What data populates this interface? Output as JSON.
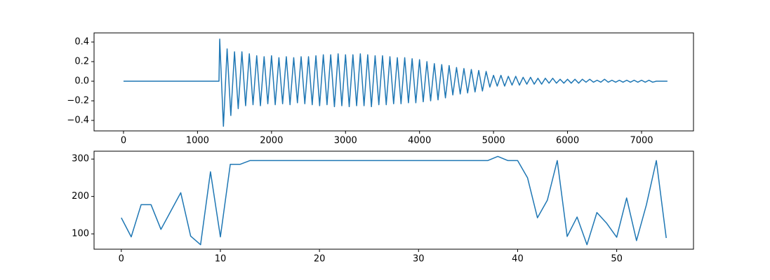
{
  "chart_data": [
    {
      "type": "line",
      "x": [
        0,
        600,
        1200,
        1290,
        1300,
        1350,
        1400,
        1450,
        1500,
        1550,
        1600,
        1650,
        1700,
        1750,
        1800,
        1850,
        1900,
        1950,
        2000,
        2050,
        2100,
        2150,
        2200,
        2250,
        2300,
        2350,
        2400,
        2450,
        2500,
        2550,
        2600,
        2650,
        2700,
        2750,
        2800,
        2850,
        2900,
        2950,
        3000,
        3050,
        3100,
        3150,
        3200,
        3250,
        3300,
        3350,
        3400,
        3450,
        3500,
        3550,
        3600,
        3650,
        3700,
        3750,
        3800,
        3850,
        3900,
        3950,
        4000,
        4050,
        4100,
        4150,
        4200,
        4250,
        4300,
        4350,
        4400,
        4450,
        4500,
        4550,
        4600,
        4650,
        4700,
        4750,
        4800,
        4850,
        4900,
        4950,
        5000,
        5050,
        5100,
        5150,
        5200,
        5250,
        5300,
        5350,
        5400,
        5450,
        5500,
        5550,
        5600,
        5650,
        5700,
        5750,
        5800,
        5850,
        5900,
        5950,
        6000,
        6050,
        6100,
        6150,
        6200,
        6250,
        6300,
        6350,
        6400,
        6450,
        6500,
        6550,
        6600,
        6650,
        6700,
        6750,
        6800,
        6850,
        6900,
        6950,
        7000,
        7050,
        7100,
        7150,
        7200,
        7350
      ],
      "values": [
        0,
        0,
        0,
        0,
        0.43,
        -0.46,
        0.33,
        -0.35,
        0.3,
        -0.28,
        0.3,
        -0.25,
        0.28,
        -0.24,
        0.26,
        -0.25,
        0.25,
        -0.23,
        0.26,
        -0.24,
        0.24,
        -0.23,
        0.25,
        -0.24,
        0.24,
        -0.22,
        0.25,
        -0.23,
        0.25,
        -0.24,
        0.26,
        -0.25,
        0.27,
        -0.24,
        0.27,
        -0.26,
        0.28,
        -0.25,
        0.27,
        -0.26,
        0.27,
        -0.25,
        0.28,
        -0.25,
        0.27,
        -0.26,
        0.26,
        -0.24,
        0.26,
        -0.24,
        0.25,
        -0.23,
        0.24,
        -0.23,
        0.24,
        -0.22,
        0.23,
        -0.22,
        0.22,
        -0.21,
        0.2,
        -0.2,
        0.18,
        -0.19,
        0.17,
        -0.17,
        0.16,
        -0.14,
        0.14,
        -0.13,
        0.13,
        -0.12,
        0.12,
        -0.11,
        0.11,
        -0.1,
        0.1,
        -0.06,
        0.06,
        -0.05,
        0.06,
        -0.05,
        0.05,
        -0.04,
        0.05,
        -0.04,
        0.04,
        -0.03,
        0.04,
        -0.03,
        0.03,
        -0.03,
        0.03,
        -0.02,
        0.03,
        -0.02,
        0.02,
        -0.02,
        0.02,
        -0.02,
        0.02,
        -0.02,
        0.02,
        -0.01,
        0.02,
        -0.01,
        0.01,
        -0.01,
        0.02,
        -0.01,
        0.01,
        -0.01,
        0.01,
        -0.01,
        0.01,
        -0.01,
        0.01,
        -0.01,
        0.01,
        -0.01,
        0.01,
        -0.01,
        0,
        0
      ],
      "color": "#1f77b4",
      "xlim": [
        -398,
        7702
      ],
      "ylim": [
        -0.507,
        0.493
      ],
      "xticks": [
        0,
        1000,
        2000,
        3000,
        4000,
        5000,
        6000,
        7000
      ],
      "yticks": [
        {
          "value": -0.4,
          "label": "−0.4"
        },
        {
          "value": -0.2,
          "label": "−0.2"
        },
        {
          "value": 0,
          "label": "0.0"
        },
        0.2,
        0.4
      ]
    },
    {
      "type": "line",
      "x": [
        0,
        1,
        2,
        3,
        4,
        5,
        6,
        7,
        8,
        9,
        10,
        11,
        12,
        13,
        14,
        15,
        16,
        17,
        18,
        19,
        20,
        21,
        22,
        23,
        24,
        25,
        26,
        27,
        28,
        29,
        30,
        31,
        32,
        33,
        34,
        35,
        36,
        37,
        38,
        39,
        40,
        41,
        42,
        43,
        44,
        45,
        46,
        47,
        48,
        49,
        50,
        51,
        52,
        53,
        54,
        55
      ],
      "values": [
        143,
        92,
        178,
        178,
        112,
        161,
        210,
        94,
        71,
        266,
        92,
        286,
        286,
        296,
        296,
        296,
        296,
        296,
        296,
        296,
        296,
        296,
        296,
        296,
        296,
        296,
        296,
        296,
        296,
        296,
        296,
        296,
        296,
        296,
        296,
        296,
        296,
        296,
        307,
        296,
        296,
        250,
        143,
        190,
        296,
        93,
        145,
        71,
        157,
        128,
        91,
        196,
        82,
        178,
        296,
        89
      ],
      "color": "#1f77b4",
      "xlim": [
        -2.75,
        57.75
      ],
      "ylim": [
        59,
        321
      ],
      "xticks": [
        0,
        10,
        20,
        30,
        40,
        50
      ],
      "yticks": [
        100,
        200,
        300
      ]
    }
  ]
}
